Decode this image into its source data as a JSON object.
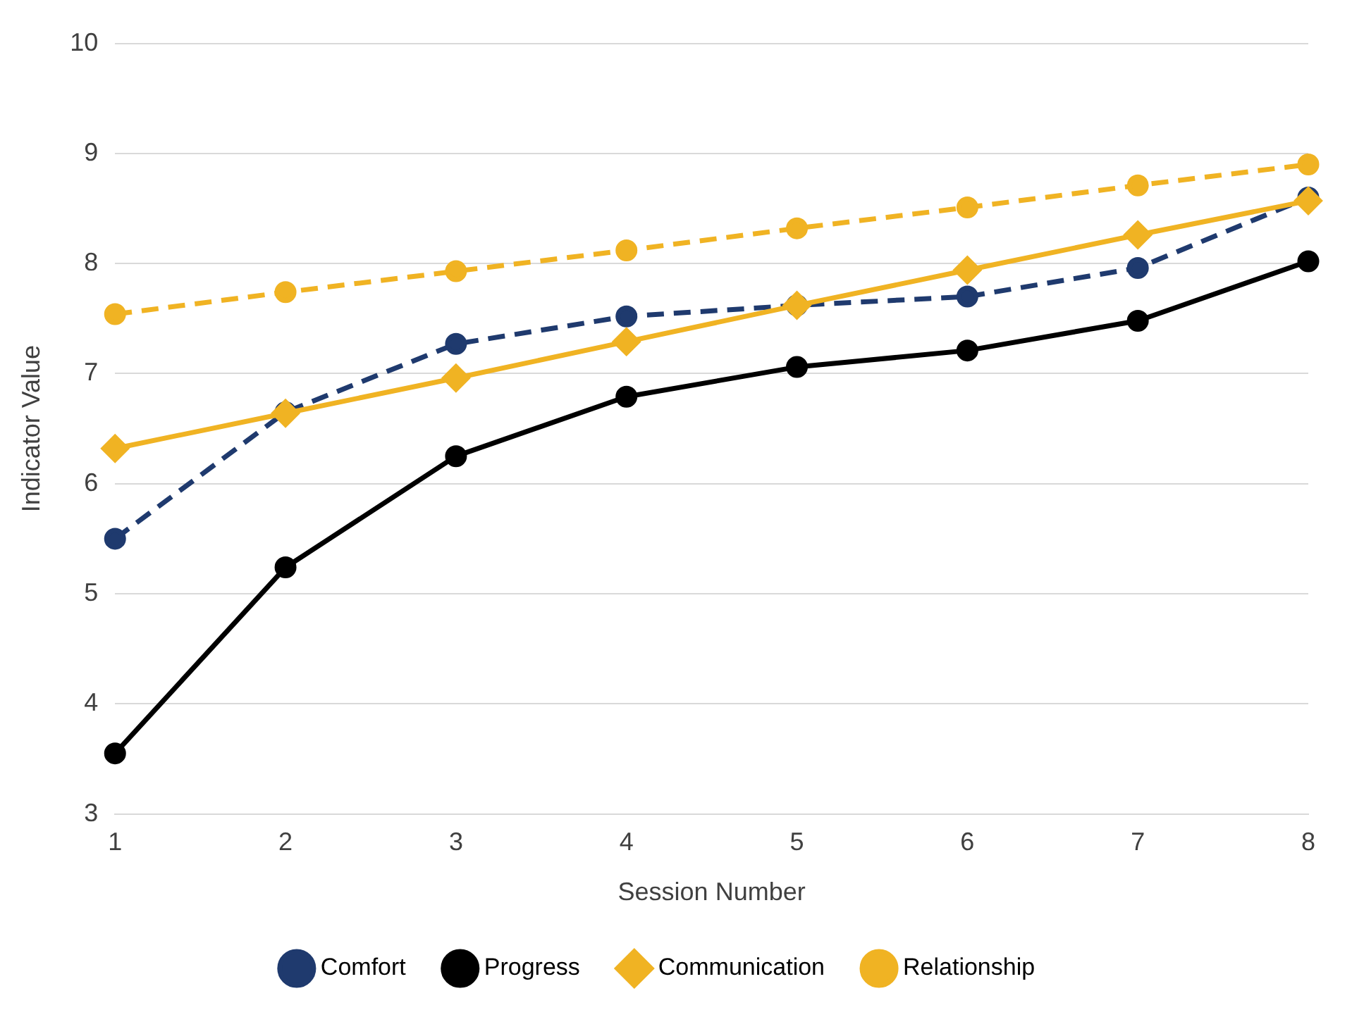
{
  "chart_data": {
    "type": "line",
    "xlabel": "Session Number",
    "ylabel": "Indicator Value",
    "categories": [
      "1",
      "2",
      "3",
      "4",
      "5",
      "6",
      "7",
      "8"
    ],
    "series": [
      {
        "name": "Comfort",
        "color": "#1f3a6e",
        "line_style": "dashed",
        "marker": "circle",
        "values": [
          5.5,
          6.65,
          7.27,
          7.52,
          7.62,
          7.7,
          7.96,
          8.6
        ]
      },
      {
        "name": "Progress",
        "color": "#000000",
        "line_style": "solid",
        "marker": "circle",
        "values": [
          3.55,
          5.24,
          6.25,
          6.79,
          7.06,
          7.21,
          7.48,
          8.02
        ]
      },
      {
        "name": "Communication",
        "color": "#f0b323",
        "line_style": "solid",
        "marker": "diamond",
        "values": [
          6.32,
          6.64,
          6.96,
          7.29,
          7.62,
          7.94,
          8.26,
          8.57
        ]
      },
      {
        "name": "Relationship",
        "color": "#f0b323",
        "line_style": "dashed",
        "marker": "circle",
        "values": [
          7.54,
          7.74,
          7.93,
          8.12,
          8.32,
          8.51,
          8.71,
          8.9
        ]
      }
    ],
    "ylim": [
      3,
      10
    ],
    "yticks": [
      3,
      4,
      5,
      6,
      7,
      8,
      9,
      10
    ],
    "grid": "y",
    "legend": "bottom"
  }
}
